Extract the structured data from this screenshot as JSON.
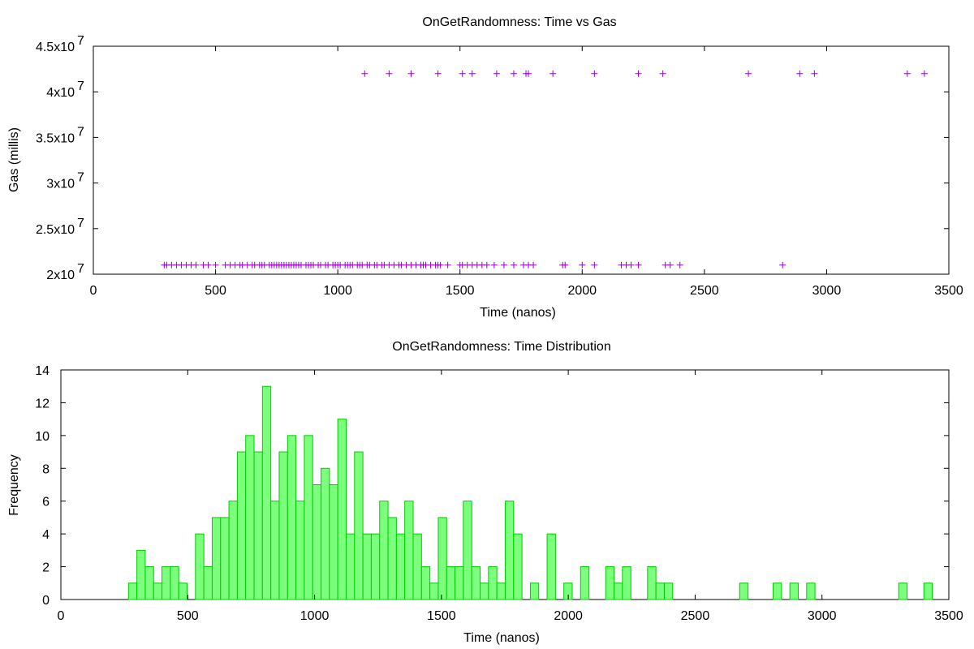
{
  "chart_data": [
    {
      "type": "scatter",
      "title": "OnGetRandomness: Time vs Gas",
      "xlabel": "Time (nanos)",
      "ylabel": "Gas (millis)",
      "xlim": [
        0,
        3500
      ],
      "ylim": [
        20000000,
        45000000
      ],
      "x_ticks": [
        "0",
        "500",
        "1000",
        "1500",
        "2000",
        "2500",
        "3000",
        "3500"
      ],
      "y_ticks": [
        {
          "base": "2x10",
          "exp": "7",
          "value": 20000000
        },
        {
          "base": "2.5x10",
          "exp": "7",
          "value": 25000000
        },
        {
          "base": "3x10",
          "exp": "7",
          "value": 30000000
        },
        {
          "base": "3.5x10",
          "exp": "7",
          "value": 35000000
        },
        {
          "base": "4x10",
          "exp": "7",
          "value": 40000000
        },
        {
          "base": "4.5x10",
          "exp": "7",
          "value": 45000000
        }
      ],
      "marker": "+",
      "color": "#9400d3",
      "grid": false,
      "series": [
        {
          "y": 21000000,
          "x": [
            290,
            300,
            320,
            340,
            360,
            380,
            400,
            420,
            450,
            470,
            500,
            540,
            560,
            580,
            600,
            610,
            630,
            650,
            660,
            680,
            690,
            700,
            720,
            730,
            740,
            750,
            760,
            770,
            780,
            790,
            800,
            810,
            820,
            830,
            840,
            850,
            870,
            880,
            890,
            900,
            920,
            930,
            950,
            960,
            980,
            990,
            1000,
            1010,
            1030,
            1040,
            1050,
            1060,
            1080,
            1090,
            1100,
            1120,
            1130,
            1150,
            1160,
            1180,
            1190,
            1210,
            1230,
            1250,
            1260,
            1280,
            1300,
            1320,
            1340,
            1350,
            1360,
            1380,
            1400,
            1410,
            1420,
            1450,
            1500,
            1510,
            1530,
            1550,
            1570,
            1590,
            1610,
            1640,
            1680,
            1720,
            1760,
            1780,
            1800,
            1920,
            1930,
            2000,
            2050,
            2160,
            2180,
            2200,
            2230,
            2340,
            2360,
            2400,
            2820
          ]
        },
        {
          "y": 42000000,
          "x": [
            1110,
            1210,
            1300,
            1410,
            1510,
            1550,
            1650,
            1720,
            1770,
            1780,
            1880,
            2050,
            2230,
            2330,
            2680,
            2890,
            2950,
            3330,
            3400
          ]
        }
      ]
    },
    {
      "type": "bar",
      "title": "OnGetRandomness: Time Distribution",
      "xlabel": "Time (nanos)",
      "ylabel": "Frequency",
      "xlim": [
        0,
        3500
      ],
      "ylim": [
        0,
        14
      ],
      "x_ticks": [
        "0",
        "500",
        "1000",
        "1500",
        "2000",
        "2500",
        "3000",
        "3500"
      ],
      "y_ticks": [
        "0",
        "2",
        "4",
        "6",
        "8",
        "10",
        "12",
        "14"
      ],
      "bin_width": 33,
      "color": "#7cff7c",
      "grid": false,
      "bins": [
        {
          "x": 283,
          "value": 1
        },
        {
          "x": 316,
          "value": 3
        },
        {
          "x": 349,
          "value": 2
        },
        {
          "x": 382,
          "value": 1
        },
        {
          "x": 415,
          "value": 2
        },
        {
          "x": 448,
          "value": 2
        },
        {
          "x": 481,
          "value": 1
        },
        {
          "x": 547,
          "value": 4
        },
        {
          "x": 580,
          "value": 2
        },
        {
          "x": 613,
          "value": 5
        },
        {
          "x": 646,
          "value": 5
        },
        {
          "x": 679,
          "value": 6
        },
        {
          "x": 712,
          "value": 9
        },
        {
          "x": 745,
          "value": 10
        },
        {
          "x": 778,
          "value": 9
        },
        {
          "x": 811,
          "value": 13
        },
        {
          "x": 844,
          "value": 6
        },
        {
          "x": 877,
          "value": 9
        },
        {
          "x": 910,
          "value": 10
        },
        {
          "x": 943,
          "value": 6
        },
        {
          "x": 976,
          "value": 10
        },
        {
          "x": 1009,
          "value": 7
        },
        {
          "x": 1042,
          "value": 8
        },
        {
          "x": 1075,
          "value": 7
        },
        {
          "x": 1108,
          "value": 11
        },
        {
          "x": 1141,
          "value": 4
        },
        {
          "x": 1174,
          "value": 9
        },
        {
          "x": 1207,
          "value": 4
        },
        {
          "x": 1240,
          "value": 4
        },
        {
          "x": 1273,
          "value": 6
        },
        {
          "x": 1306,
          "value": 5
        },
        {
          "x": 1339,
          "value": 4
        },
        {
          "x": 1372,
          "value": 6
        },
        {
          "x": 1405,
          "value": 4
        },
        {
          "x": 1438,
          "value": 2
        },
        {
          "x": 1471,
          "value": 1
        },
        {
          "x": 1504,
          "value": 5
        },
        {
          "x": 1537,
          "value": 2
        },
        {
          "x": 1570,
          "value": 2
        },
        {
          "x": 1603,
          "value": 6
        },
        {
          "x": 1636,
          "value": 2
        },
        {
          "x": 1669,
          "value": 1
        },
        {
          "x": 1702,
          "value": 2
        },
        {
          "x": 1735,
          "value": 1
        },
        {
          "x": 1768,
          "value": 6
        },
        {
          "x": 1801,
          "value": 4
        },
        {
          "x": 1867,
          "value": 1
        },
        {
          "x": 1933,
          "value": 4
        },
        {
          "x": 1999,
          "value": 1
        },
        {
          "x": 2065,
          "value": 2
        },
        {
          "x": 2164,
          "value": 2
        },
        {
          "x": 2197,
          "value": 1
        },
        {
          "x": 2230,
          "value": 2
        },
        {
          "x": 2329,
          "value": 2
        },
        {
          "x": 2362,
          "value": 1
        },
        {
          "x": 2395,
          "value": 1
        },
        {
          "x": 2692,
          "value": 1
        },
        {
          "x": 2824,
          "value": 1
        },
        {
          "x": 2890,
          "value": 1
        },
        {
          "x": 2956,
          "value": 1
        },
        {
          "x": 3319,
          "value": 1
        },
        {
          "x": 3418,
          "value": 1
        }
      ]
    }
  ]
}
